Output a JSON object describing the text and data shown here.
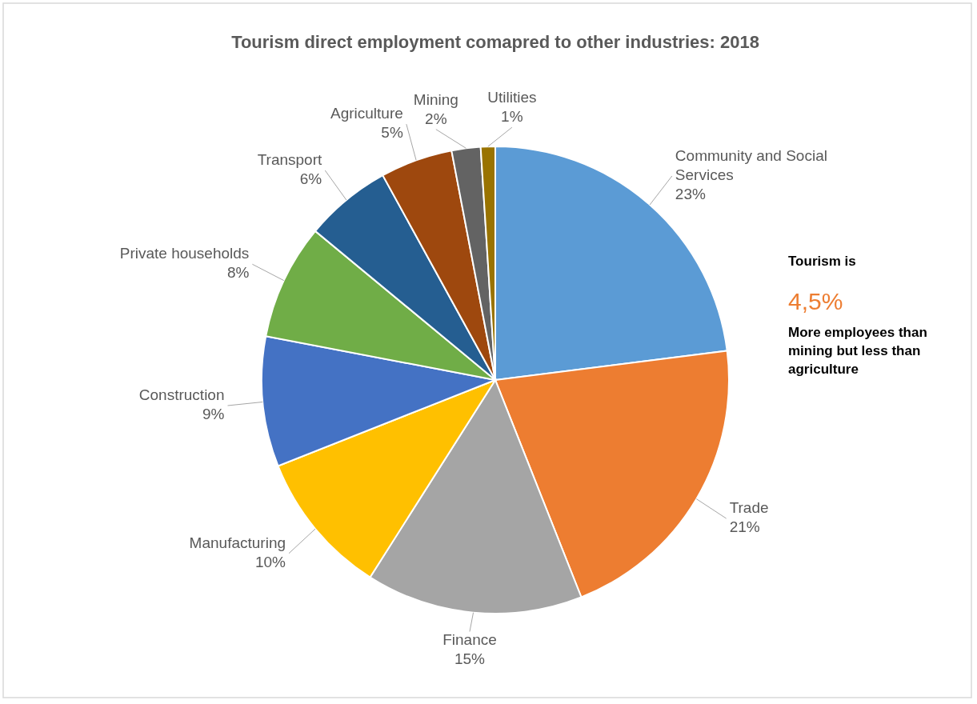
{
  "chart_data": {
    "type": "pie",
    "title": "Tourism direct employment comapred to other industries: 2018",
    "categories": [
      "Community and Social Services",
      "Trade",
      "Finance",
      "Manufacturing",
      "Construction",
      "Private households",
      "Transport",
      "Agriculture",
      "Mining",
      "Utilities"
    ],
    "values": [
      23,
      21,
      15,
      10,
      9,
      8,
      6,
      5,
      2,
      1
    ],
    "colors": [
      "#5b9bd5",
      "#ed7d31",
      "#a5a5a5",
      "#ffc000",
      "#4472c4",
      "#70ad47",
      "#255e91",
      "#9e480e",
      "#636363",
      "#997300"
    ],
    "value_labels": [
      "23%",
      "21%",
      "15%",
      "10%",
      "9%",
      "8%",
      "6%",
      "5%",
      "2%",
      "1%"
    ],
    "annotations": [
      "Tourism is",
      "4,5%",
      "More employees than mining but less than agriculture"
    ],
    "legend": false
  }
}
